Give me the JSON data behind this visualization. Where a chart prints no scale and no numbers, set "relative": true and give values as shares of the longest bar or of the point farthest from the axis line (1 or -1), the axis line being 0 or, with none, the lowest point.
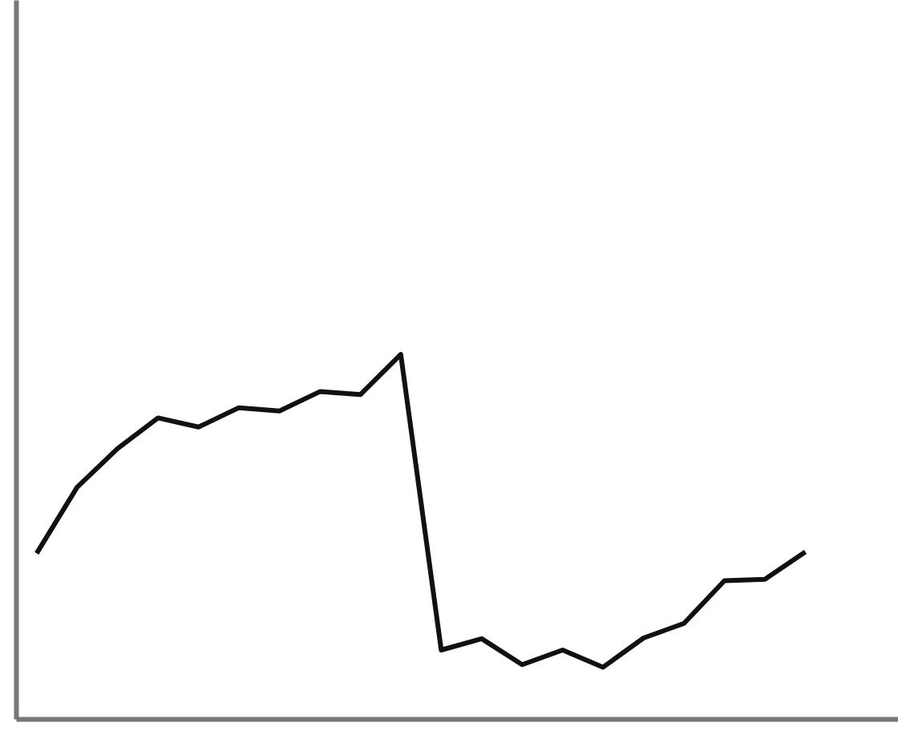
{
  "chart_data": {
    "type": "line",
    "relative": true,
    "categories": [
      null,
      null,
      null,
      null,
      null,
      null,
      null,
      null,
      null,
      null,
      null,
      null,
      null,
      null,
      null,
      null,
      null,
      null,
      null,
      null
    ],
    "series": [
      {
        "color": "#111111",
        "values": [
          0.455,
          0.636,
          0.742,
          0.826,
          0.801,
          0.854,
          0.845,
          0.898,
          0.89,
          1.0,
          0.19,
          0.221,
          0.15,
          0.19,
          0.143,
          0.223,
          0.263,
          0.38,
          0.384,
          0.459
        ]
      }
    ],
    "grid": false,
    "marker": "none",
    "line_style": "solid"
  }
}
